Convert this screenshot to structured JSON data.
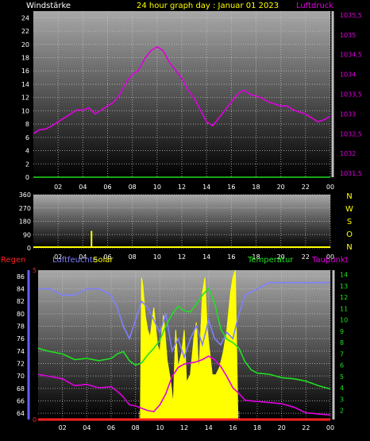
{
  "header": {
    "left_label": "Windstärke",
    "title": "24 hour graph day : Januar 01 2023",
    "right_label": "Luftdruck"
  },
  "colors": {
    "white": "#ffffff",
    "yellow": "#ffff00",
    "magenta": "#e000e0",
    "red": "#ff2020",
    "blue": "#8080ff",
    "green": "#20e020",
    "grid": "#cccccc"
  },
  "chart_data": [
    {
      "id": "wind-pressure",
      "type": "line",
      "x_ticks": [
        "02",
        "04",
        "06",
        "08",
        "10",
        "12",
        "14",
        "16",
        "18",
        "20",
        "22",
        "00"
      ],
      "y_left_ticks": [
        "0",
        "2",
        "4",
        "6",
        "8",
        "10",
        "12",
        "14",
        "16",
        "18",
        "20",
        "22",
        "24"
      ],
      "y_left_range": [
        0,
        25
      ],
      "y_right_ticks": [
        "1031,5",
        "1032",
        "1032,5",
        "1033",
        "1033,5",
        "1034",
        "1034,5",
        "1035",
        "1035,5"
      ],
      "y_right_range": [
        1031.4,
        1035.6
      ],
      "grid": true,
      "series": [
        {
          "label_ref": "header.right_label",
          "axis": "right",
          "color": "#e000e0",
          "x": [
            0,
            0.5,
            1,
            1.5,
            2,
            2.5,
            3,
            3.5,
            4,
            4.5,
            5,
            5.5,
            6,
            6.5,
            7,
            7.5,
            8,
            8.5,
            9,
            9.5,
            10,
            10.5,
            11,
            11.5,
            12,
            12.5,
            13,
            13.5,
            14,
            14.5,
            15,
            15.5,
            16,
            16.5,
            17,
            17.5,
            18,
            18.5,
            19,
            19.5,
            20,
            20.5,
            21,
            21.5,
            22,
            22.5,
            23,
            23.5,
            24
          ],
          "y": [
            1032.5,
            1032.6,
            1032.62,
            1032.7,
            1032.8,
            1032.9,
            1033.0,
            1033.1,
            1033.1,
            1033.15,
            1033.0,
            1033.1,
            1033.2,
            1033.3,
            1033.5,
            1033.8,
            1034.0,
            1034.1,
            1034.4,
            1034.6,
            1034.7,
            1034.6,
            1034.3,
            1034.1,
            1033.9,
            1033.6,
            1033.4,
            1033.1,
            1032.8,
            1032.7,
            1032.9,
            1033.1,
            1033.3,
            1033.5,
            1033.6,
            1033.5,
            1033.45,
            1033.4,
            1033.3,
            1033.25,
            1033.2,
            1033.2,
            1033.1,
            1033.05,
            1033.0,
            1032.9,
            1032.8,
            1032.85,
            1032.95
          ]
        },
        {
          "label_ref": "header.left_label",
          "axis": "left",
          "color": "#20e020",
          "x": [
            0,
            24
          ],
          "y": [
            0,
            0
          ]
        }
      ]
    },
    {
      "id": "wind-direction",
      "type": "bar",
      "x_ticks": [
        "02",
        "04",
        "06",
        "08",
        "10",
        "12",
        "14",
        "16",
        "18",
        "20",
        "22",
        "00"
      ],
      "y_ticks": [
        "0",
        "90",
        "180",
        "270",
        "360"
      ],
      "y_range": [
        0,
        360
      ],
      "compass_labels": [
        "N",
        "W",
        "S",
        "O",
        "N"
      ],
      "grid": true,
      "bars": [
        {
          "x": 4.7,
          "value": 115,
          "color": "#ffff00"
        }
      ]
    },
    {
      "id": "climate",
      "type": "line",
      "legend": {
        "rain": "Regen",
        "humidity": "Luftfeuchte",
        "solar": "Solar",
        "temperature": "Temperatur",
        "dewpoint": "Taupunkt"
      },
      "x_ticks": [
        "02",
        "04",
        "06",
        "08",
        "10",
        "12",
        "14",
        "16",
        "18",
        "20",
        "22",
        "00"
      ],
      "y_humidity_ticks": [
        "64",
        "66",
        "68",
        "70",
        "72",
        "74",
        "76",
        "78",
        "80",
        "82",
        "84",
        "86"
      ],
      "y_humidity_range": [
        63,
        87
      ],
      "y_rain_ticks": [
        "0",
        "5"
      ],
      "y_rain_range": [
        0,
        5
      ],
      "y_temp_ticks": [
        "2",
        "3",
        "4",
        "5",
        "6",
        "7",
        "8",
        "9",
        "10",
        "11",
        "12",
        "13",
        "14"
      ],
      "y_temp_range": [
        1.2,
        14.4
      ],
      "grid": true,
      "series": [
        {
          "name_ref": "legend.humidity",
          "axis": "humidity",
          "color": "#8080ff",
          "x": [
            0,
            1,
            2,
            3,
            4,
            5,
            6,
            6.5,
            7,
            7.5,
            8,
            8.5,
            9,
            9.5,
            10,
            10.5,
            11,
            11.5,
            12,
            12.5,
            13,
            13.5,
            14,
            14.5,
            15,
            15.5,
            16,
            16.5,
            17,
            18,
            19,
            20,
            21,
            22,
            23,
            24
          ],
          "y": [
            84,
            84,
            83,
            83,
            84,
            84,
            83,
            81,
            78,
            76,
            79,
            82,
            81,
            79,
            77,
            80,
            74,
            76,
            73,
            76,
            78,
            75,
            79,
            76,
            75,
            77,
            76,
            80,
            83,
            84,
            85,
            85,
            85,
            85,
            85,
            85
          ]
        },
        {
          "name_ref": "legend.temperature",
          "axis": "temp",
          "color": "#20e020",
          "x": [
            0,
            1,
            2,
            3,
            4,
            5,
            6,
            6.5,
            7,
            7.5,
            8,
            8.5,
            9,
            9.5,
            10,
            10.5,
            11,
            11.5,
            12,
            12.5,
            13,
            13.5,
            14,
            14.5,
            15,
            15.5,
            16,
            16.5,
            17,
            17.5,
            18,
            19,
            20,
            21,
            22,
            23,
            24
          ],
          "y": [
            7.5,
            7.2,
            7.0,
            6.5,
            6.6,
            6.4,
            6.6,
            7.0,
            7.2,
            6.4,
            6.0,
            6.2,
            6.9,
            7.5,
            8.2,
            9.5,
            10.5,
            11.2,
            10.8,
            10.7,
            11.4,
            12.2,
            12.8,
            11.5,
            9.2,
            8.3,
            8.0,
            7.5,
            6.3,
            5.6,
            5.3,
            5.2,
            4.9,
            4.8,
            4.6,
            4.2,
            3.9
          ]
        },
        {
          "name_ref": "legend.dewpoint",
          "axis": "temp",
          "color": "#e000e0",
          "x": [
            0,
            1,
            2,
            3,
            4,
            5,
            6,
            6.5,
            7,
            7.5,
            8,
            8.5,
            9,
            9.5,
            10,
            10.5,
            11,
            11.5,
            12,
            12.5,
            13,
            13.5,
            14,
            14.5,
            15,
            15.5,
            16,
            16.5,
            17,
            18,
            19,
            20,
            21,
            22,
            23,
            24
          ],
          "y": [
            5.2,
            5.0,
            4.8,
            4.2,
            4.3,
            4.0,
            4.1,
            3.7,
            3.2,
            2.5,
            2.4,
            2.2,
            2.0,
            1.9,
            2.5,
            3.5,
            5.0,
            5.8,
            6.1,
            6.2,
            6.3,
            6.5,
            6.8,
            6.5,
            5.9,
            5.0,
            4.0,
            3.5,
            2.9,
            2.8,
            2.7,
            2.6,
            2.3,
            1.8,
            1.7,
            1.6
          ]
        },
        {
          "name_ref": "legend.rain",
          "axis": "rain",
          "color": "#ff2020",
          "x": [
            0,
            24
          ],
          "y": [
            0,
            0
          ]
        }
      ],
      "solar": {
        "name_ref": "legend.solar",
        "color": "#ffff00",
        "x": [
          8.4,
          8.5,
          8.6,
          8.8,
          9.0,
          9.2,
          9.5,
          9.8,
          10.0,
          10.3,
          10.6,
          10.9,
          11.1,
          11.3,
          11.5,
          11.8,
          12.0,
          12.2,
          12.5,
          12.8,
          13.0,
          13.2,
          13.5,
          13.7,
          13.9,
          14.1,
          14.3,
          14.6,
          14.9,
          15.2,
          15.5,
          15.8,
          16.0,
          16.2,
          16.4
        ],
        "y": [
          0.05,
          0.95,
          0.9,
          0.7,
          0.6,
          0.55,
          0.75,
          0.5,
          0.45,
          0.7,
          0.4,
          0.25,
          0.1,
          0.6,
          0.35,
          0.45,
          0.6,
          0.25,
          0.3,
          0.55,
          0.65,
          0.3,
          0.85,
          0.95,
          0.6,
          0.45,
          0.3,
          0.3,
          0.35,
          0.45,
          0.6,
          0.85,
          0.95,
          1.0,
          0.05
        ]
      }
    }
  ]
}
